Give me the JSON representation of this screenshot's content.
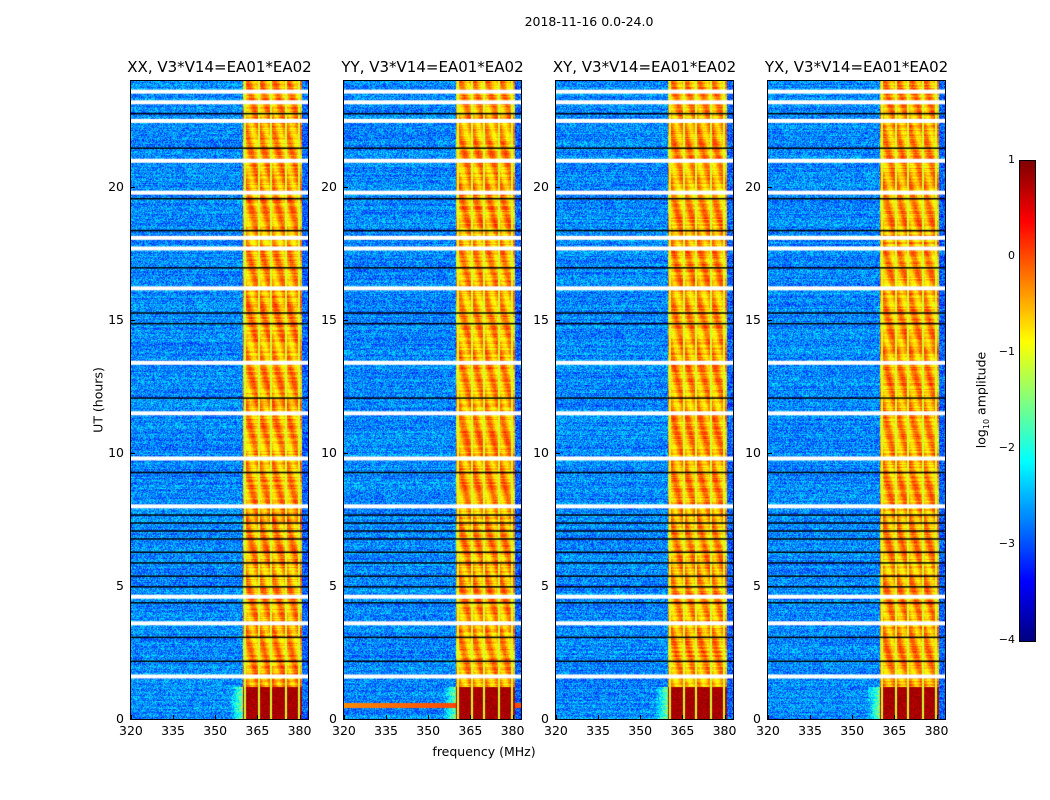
{
  "chart_data": {
    "type": "heatmap",
    "title": "2018-11-16 0.0-24.0",
    "xlabel": "frequency (MHz)",
    "ylabel": "UT (hours)",
    "xlim": [
      320,
      383
    ],
    "ylim": [
      0,
      24
    ],
    "xticks": [
      "320",
      "335",
      "350",
      "365",
      "380"
    ],
    "yticks": [
      "0",
      "5",
      "10",
      "15",
      "20"
    ],
    "panels": [
      {
        "title": "XX, V3*V14=EA01*EA02",
        "low_band_stripe": false
      },
      {
        "title": "YY, V3*V14=EA01*EA02",
        "low_band_stripe": true
      },
      {
        "title": "XY, V3*V14=EA01*EA02",
        "low_band_stripe": false
      },
      {
        "title": "YX, V3*V14=EA01*EA02",
        "low_band_stripe": false
      }
    ],
    "background_log_amplitude": -2.7,
    "bright_band_mhz": [
      360,
      381
    ],
    "bright_band_log_amplitude": -0.4,
    "strong_interval_hours": [
      0,
      1.2
    ],
    "strong_log_amplitude": 0.8,
    "channel_lines_mhz": [
      360.5,
      365.5,
      370,
      375,
      379.8
    ],
    "flagged_hours": [
      1.6,
      3.6,
      4.6,
      8.0,
      9.8,
      11.5,
      13.4,
      16.2,
      17.7,
      18.1,
      19.8,
      21.0,
      22.5,
      23.2,
      23.6
    ],
    "dark_rows_hours": [
      2.2,
      3.1,
      4.4,
      5.0,
      5.4,
      5.9,
      6.3,
      6.8,
      7.1,
      7.4,
      7.7,
      9.3,
      12.1,
      14.9,
      15.3,
      17.0,
      18.4,
      19.6,
      21.5,
      22.8
    ],
    "colorbar": {
      "label_prefix": "log",
      "label_sub": "10",
      "label_suffix": " amplitude",
      "range": [
        -4,
        1
      ],
      "ticks": [
        "1",
        "0",
        "−1",
        "−2",
        "−3",
        "−4"
      ],
      "colormap": "jet"
    }
  }
}
